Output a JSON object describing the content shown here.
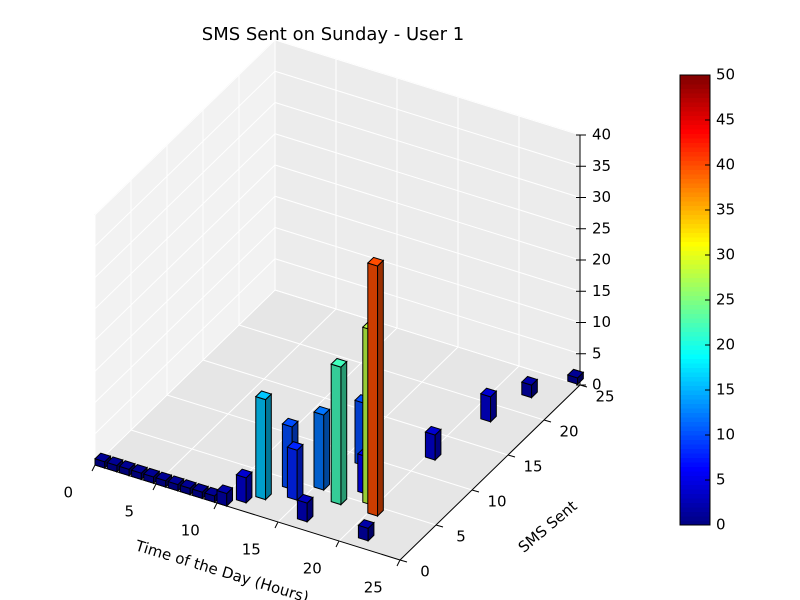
{
  "chart_data": {
    "type": "bar3d",
    "title": "SMS Sent on Sunday - User 1",
    "xlabel": "Time of the Day (Hours)",
    "ylabel": "SMS Sent",
    "x": [
      0,
      1,
      2,
      3,
      4,
      5,
      6,
      7,
      8,
      9,
      10,
      11,
      12,
      13,
      14,
      15,
      16,
      16,
      17,
      18,
      19,
      20,
      21,
      20,
      21,
      22,
      24
    ],
    "y": [
      0,
      0,
      0,
      0,
      0,
      0,
      0,
      0,
      0,
      0,
      0,
      1,
      2,
      4,
      3,
      5,
      1,
      9,
      4,
      6,
      5,
      4,
      1,
      12,
      18,
      22,
      25
    ],
    "values": [
      1,
      1,
      1,
      1,
      1,
      1,
      1,
      1,
      1,
      1,
      2,
      4,
      16,
      10,
      8,
      12,
      3,
      10,
      22,
      6,
      28,
      40,
      2,
      4,
      4,
      2,
      1
    ],
    "colormap": "jet",
    "clim": [
      0,
      50
    ],
    "cticks": [
      0,
      5,
      10,
      15,
      20,
      25,
      30,
      35,
      40,
      45,
      50
    ],
    "xlim": [
      0,
      25
    ],
    "xticks": [
      0,
      5,
      10,
      15,
      20,
      25
    ],
    "ylim": [
      0,
      25
    ],
    "yticks": [
      0,
      5,
      10,
      15,
      20,
      25
    ],
    "zlim": [
      0,
      40
    ],
    "zticks": [
      0,
      5,
      10,
      15,
      20,
      25,
      30,
      35,
      40
    ],
    "grid": true
  }
}
